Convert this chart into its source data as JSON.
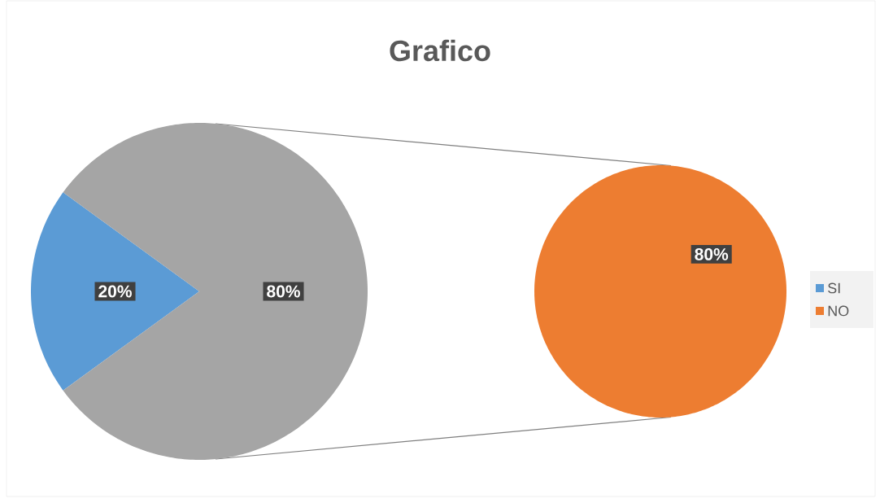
{
  "chart_data": [
    {
      "type": "pie",
      "title": "Grafico",
      "categories": [
        "SI",
        null
      ],
      "values": [
        20,
        80
      ],
      "colors": [
        "#5b9bd5",
        "#a5a5a5"
      ],
      "value_labels": [
        "20%",
        "80%"
      ],
      "legend": "right"
    },
    {
      "type": "pie",
      "categories": [
        "NO"
      ],
      "values": [
        80
      ],
      "colors": [
        "#ed7d31"
      ],
      "value_labels": [
        "80%"
      ],
      "legend": "right"
    }
  ]
}
